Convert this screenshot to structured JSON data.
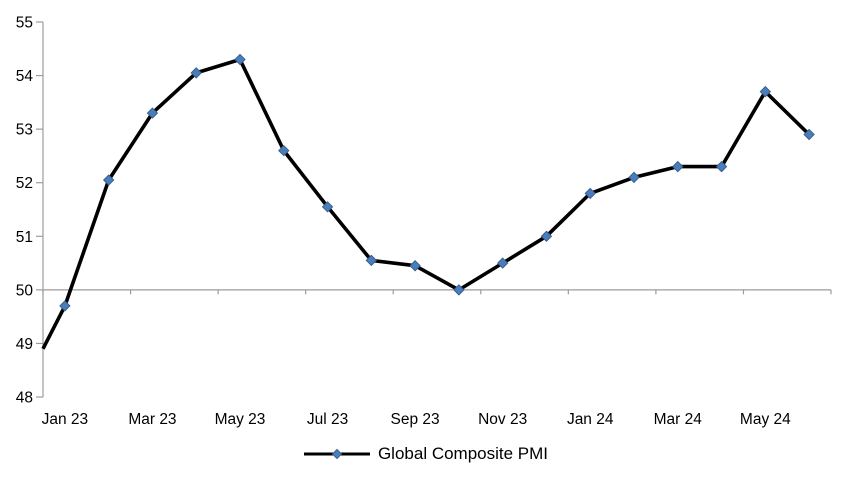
{
  "chart_data": {
    "type": "line",
    "title": "",
    "categories": [
      "Jan 23",
      "Feb 23",
      "Mar 23",
      "Apr 23",
      "May 23",
      "Jun 23",
      "Jul 23",
      "Aug 23",
      "Sep 23",
      "Oct 23",
      "Nov 23",
      "Dec 23",
      "Jan 24",
      "Feb 24",
      "Mar 24",
      "Apr 24",
      "May 24",
      "Jun 24"
    ],
    "series": [
      {
        "name": "Global Composite PMI",
        "values": [
          49.7,
          52.05,
          53.3,
          54.05,
          54.3,
          52.6,
          51.55,
          50.55,
          50.45,
          50.0,
          50.5,
          51.0,
          51.8,
          52.1,
          52.3,
          52.3,
          53.7,
          52.9
        ]
      }
    ],
    "leading_edge_value": 48.9,
    "x_tick_labels": [
      "Jan 23",
      "Mar 23",
      "May 23",
      "Jul 23",
      "Sep 23",
      "Nov 23",
      "Jan 24",
      "Mar 24",
      "May 24"
    ],
    "x_label_every": 2,
    "ylim": [
      48,
      55
    ],
    "y_ticks": [
      48,
      49,
      50,
      51,
      52,
      53,
      54,
      55
    ],
    "x_axis_cross_at": 50,
    "grid": false,
    "legend_position": "bottom",
    "colors": {
      "line": "#000000",
      "marker_fill": "#4A7EBB",
      "marker_edge": "#38608F",
      "axis": "#9C9C9C",
      "text": "#000000",
      "background": "#FFFFFF"
    }
  },
  "legend": {
    "label": "Global Composite PMI"
  }
}
